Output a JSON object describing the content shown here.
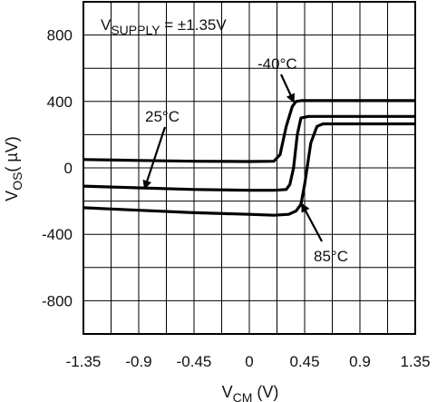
{
  "chart_data": {
    "type": "line",
    "title": "",
    "xlabel": {
      "main": "V",
      "sub": "CM",
      "unit": " (V)"
    },
    "ylabel": {
      "main": "V",
      "sub": "OS",
      "unit": "( µV)"
    },
    "xlim": [
      -1.35,
      1.35
    ],
    "ylim": [
      -1000,
      1000
    ],
    "xticks": [
      -1.35,
      -0.9,
      -0.45,
      0,
      0.45,
      0.9,
      1.35
    ],
    "xtick_labels": [
      "-1.35",
      "-0.9",
      "-0.45",
      "0",
      "0.45",
      "0.9",
      "1.35"
    ],
    "yticks": [
      800,
      400,
      0,
      -400,
      -800
    ],
    "ytick_labels": [
      "800",
      "400",
      "0",
      "-400",
      "-800"
    ],
    "grid": true,
    "condition": {
      "prefix": "V",
      "sub": "SUPPLY",
      "suffix": " = ±1.35V"
    },
    "series": [
      {
        "name": "-40°C",
        "color": "#000000",
        "x": [
          -1.35,
          -0.9,
          -0.45,
          0,
          0.2,
          0.25,
          0.3,
          0.35,
          0.38,
          0.42,
          0.5,
          0.9,
          1.35
        ],
        "y": [
          50,
          45,
          40,
          38,
          40,
          80,
          250,
          370,
          400,
          405,
          405,
          405,
          405
        ]
      },
      {
        "name": "25°C",
        "color": "#000000",
        "x": [
          -1.35,
          -0.9,
          -0.45,
          0,
          0.2,
          0.3,
          0.33,
          0.36,
          0.39,
          0.42,
          0.48,
          0.9,
          1.35
        ],
        "y": [
          -110,
          -120,
          -130,
          -135,
          -135,
          -130,
          -100,
          0,
          200,
          300,
          310,
          310,
          310
        ]
      },
      {
        "name": "85°C",
        "color": "#000000",
        "x": [
          -1.35,
          -0.9,
          -0.45,
          0,
          0.2,
          0.32,
          0.38,
          0.42,
          0.45,
          0.5,
          0.55,
          0.6,
          0.9,
          1.35
        ],
        "y": [
          -240,
          -255,
          -270,
          -280,
          -285,
          -280,
          -260,
          -220,
          -100,
          150,
          250,
          265,
          265,
          265
        ]
      }
    ],
    "annotations": [
      {
        "text": "-40°C",
        "series": "-40°C",
        "target": [
          0.36,
          400
        ]
      },
      {
        "text": "25°C",
        "series": "25°C",
        "target": [
          -0.85,
          -120
        ]
      },
      {
        "text": "85°C",
        "series": "85°C",
        "target": [
          0.43,
          -220
        ]
      }
    ]
  }
}
